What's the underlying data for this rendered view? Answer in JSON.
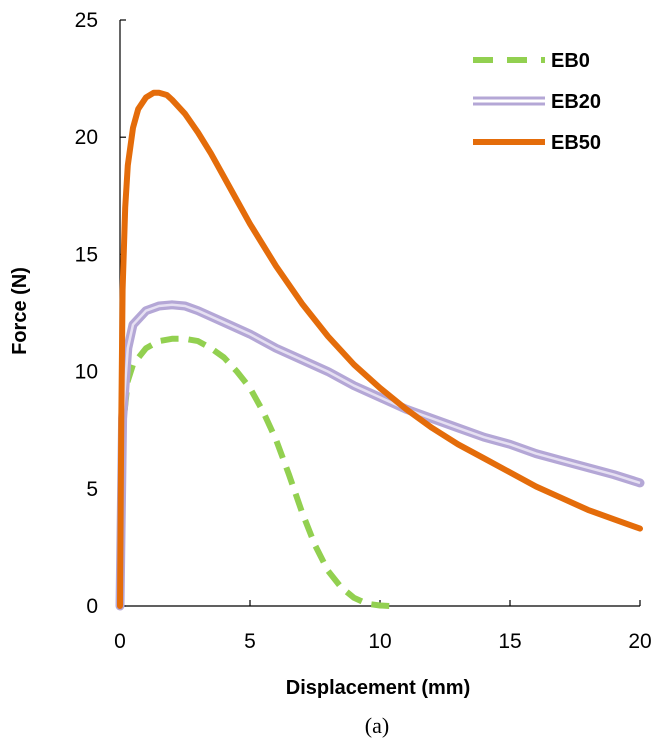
{
  "chart_data": {
    "type": "line",
    "xlabel": "Displacement (mm)",
    "ylabel": "Force (N)",
    "caption": "(a)",
    "xlim": [
      0,
      20
    ],
    "ylim": [
      0,
      25
    ],
    "x_ticks": [
      0,
      5,
      10,
      15,
      20
    ],
    "y_ticks": [
      0,
      5,
      10,
      15,
      20,
      25
    ],
    "grid": false,
    "legend_position": "top-right",
    "series": [
      {
        "name": "EB0",
        "color": "#92D050",
        "style": "dashed",
        "x": [
          0,
          0.1,
          0.3,
          0.5,
          1.0,
          1.5,
          2.0,
          2.5,
          3.0,
          3.5,
          4.0,
          4.5,
          5.0,
          5.5,
          6.0,
          6.5,
          7.0,
          7.5,
          8.0,
          8.5,
          9.0,
          9.5,
          10.0,
          10.4
        ],
        "y": [
          0,
          7.5,
          9.6,
          10.3,
          11.0,
          11.3,
          11.4,
          11.4,
          11.3,
          11.0,
          10.6,
          10.0,
          9.3,
          8.3,
          7.1,
          5.6,
          4.0,
          2.6,
          1.5,
          0.8,
          0.35,
          0.1,
          0.02,
          0.0
        ]
      },
      {
        "name": "EB20",
        "color": "#B4A7D6",
        "style": "double",
        "x": [
          0,
          0.1,
          0.3,
          0.5,
          1.0,
          1.5,
          2.0,
          2.5,
          3.0,
          4.0,
          5.0,
          6.0,
          7.0,
          8.0,
          9.0,
          10.0,
          11.0,
          12.0,
          13.0,
          14.0,
          15.0,
          16.0,
          17.0,
          18.0,
          19.0,
          20.0
        ],
        "y": [
          0,
          8.0,
          11.0,
          12.0,
          12.6,
          12.8,
          12.85,
          12.8,
          12.6,
          12.1,
          11.6,
          11.0,
          10.5,
          10.0,
          9.4,
          8.9,
          8.4,
          8.0,
          7.6,
          7.2,
          6.9,
          6.5,
          6.2,
          5.9,
          5.6,
          5.25
        ]
      },
      {
        "name": "EB50",
        "color": "#E46C0A",
        "style": "solid",
        "x": [
          0,
          0.05,
          0.1,
          0.2,
          0.3,
          0.5,
          0.7,
          1.0,
          1.3,
          1.5,
          1.8,
          2.0,
          2.5,
          3.0,
          3.5,
          4.0,
          4.5,
          5.0,
          5.5,
          6.0,
          7.0,
          8.0,
          9.0,
          10.0,
          11.0,
          12.0,
          13.0,
          14.0,
          15.0,
          16.0,
          17.0,
          18.0,
          19.0,
          20.0
        ],
        "y": [
          0,
          8.0,
          13.5,
          17.0,
          18.8,
          20.4,
          21.2,
          21.7,
          21.9,
          21.9,
          21.8,
          21.6,
          21.0,
          20.2,
          19.3,
          18.3,
          17.3,
          16.3,
          15.4,
          14.5,
          12.9,
          11.5,
          10.3,
          9.3,
          8.4,
          7.6,
          6.9,
          6.3,
          5.7,
          5.1,
          4.6,
          4.1,
          3.7,
          3.3
        ]
      }
    ]
  }
}
